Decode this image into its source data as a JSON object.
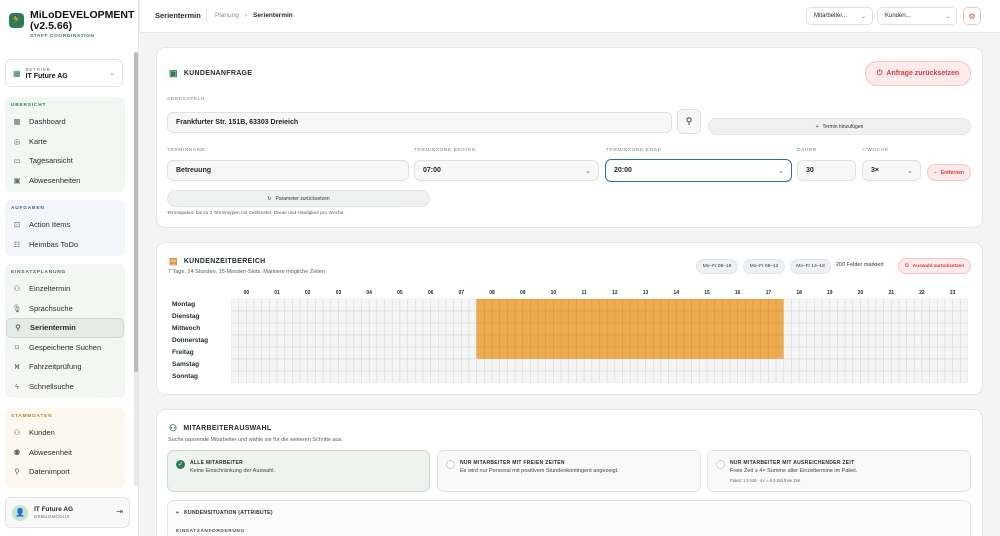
{
  "brand": {
    "title_line1": "MiLoDEVELOPMENT",
    "title_line2": "(v2.5.66)",
    "subtitle": "STAFF COORDINATION",
    "logo_icon": "runner-icon"
  },
  "betrieb": {
    "label": "BETRIEB",
    "value": "IT Future AG"
  },
  "nav": {
    "uebersicht": {
      "label": "ÜBERSICHT",
      "items": [
        "Dashboard",
        "Karte",
        "Tagesansicht",
        "Abwesenheiten"
      ]
    },
    "aufgaben": {
      "label": "AUFGABEN",
      "items": [
        "Action Items",
        "Heimbas ToDo"
      ]
    },
    "einsatzplanung": {
      "label": "EINSATZPLANUNG",
      "items": [
        "Einzeltermin",
        "Sprachsuche",
        "Serientermin",
        "Gespeicherte Suchen",
        "Fahrzeitprüfung",
        "Schnellsuche"
      ]
    },
    "stammdaten": {
      "label": "STAMMDATEN",
      "items": [
        "Kunden",
        "Abwesenheit",
        "Datenimport"
      ]
    }
  },
  "user": {
    "name": "IT Future AG",
    "mode": "DEBUGMODUS"
  },
  "topbar": {
    "title": "Serientermin",
    "breadcrumb": [
      "Planung",
      "›",
      "Serientermin"
    ],
    "mitarbeiter_select": "Mitarbeiter...",
    "kunden_select": "Kunden..."
  },
  "kundenanfrage": {
    "title": "KUNDENANFRAGE",
    "reset_button": "Anfrage zurücksetzen",
    "adressfeld_label": "ADRESSFELD",
    "adresse": "Frankfurter Str. 151B, 63303 Dreieich",
    "termin_hinzufuegen": "Termin hinzufügen",
    "terminname_label": "TERMINNAME",
    "terminname": "Betreuung",
    "beginn_label": "TERMINZONE BEGINN",
    "beginn": "07:00",
    "ende_label": "TERMINZONE ENDE",
    "ende": "20:00",
    "dauer_label": "DAUER",
    "dauer": "30",
    "woche_label": "×/WOCHE",
    "woche": "3×",
    "entfernen": "Entfernen",
    "parameter_reset": "Parameter zurücksetzen",
    "hint": "Terminpaket: bis zu 3 Termintypen mit Zeitfenster, Dauer und Häufigkeit pro Woche."
  },
  "zeitbereich": {
    "title": "KUNDENZEITBEREICH",
    "subtitle": "7 Tage, 24 Stunden, 15-Minuten-Slots. Markiere mögliche Zeiten",
    "chips": [
      "Mo–Fr 08–18",
      "Mo–Fr 08–12",
      "Mo–Fr 14–18"
    ],
    "marked": "200 Felder markiert",
    "clear": "Auswahl zurücksetzen",
    "days": [
      "Montag",
      "Dienstag",
      "Mittwoch",
      "Donnerstag",
      "Freitag",
      "Samstag",
      "Sonntag"
    ],
    "hours": [
      "00",
      "01",
      "02",
      "03",
      "04",
      "05",
      "06",
      "07",
      "08",
      "09",
      "10",
      "11",
      "12",
      "13",
      "14",
      "15",
      "16",
      "17",
      "18",
      "19",
      "20",
      "21",
      "22",
      "23"
    ],
    "selection": {
      "days": [
        "Montag",
        "Dienstag",
        "Mittwoch",
        "Donnerstag",
        "Freitag"
      ],
      "from_hour": 8,
      "to_hour": 18
    },
    "selected_color": "#eeab4f"
  },
  "mitarbeiterauswahl": {
    "title": "MITARBEITERAUSWAHL",
    "subtitle": "Suche passende Mitarbeiter und wähle sie für die weiteren Schritte aus.",
    "options": [
      {
        "title": "ALLE MITARBEITER",
        "desc": "Keine Einschränkung der Auswahl.",
        "note": ""
      },
      {
        "title": "NUR MITARBEITER MIT FREIEN ZEITEN",
        "desc": "Es wird nur Personal mit positivem Stundenkontingent angezeigt.",
        "note": ""
      },
      {
        "title": "NUR MITARBEITER MIT AUSREICHENDER ZEIT",
        "desc": "Freie Zeit ≥ 4× Summe aller Einzeltermine im Paket.",
        "note": "Paket: 1.5 Std · 4× = 6.0 Std freie Zeit"
      }
    ],
    "attribute_title": "KUNDENSITUATION (ATTRIBUTE)",
    "einsatz_label": "EINSATZANFORDERUNG"
  }
}
